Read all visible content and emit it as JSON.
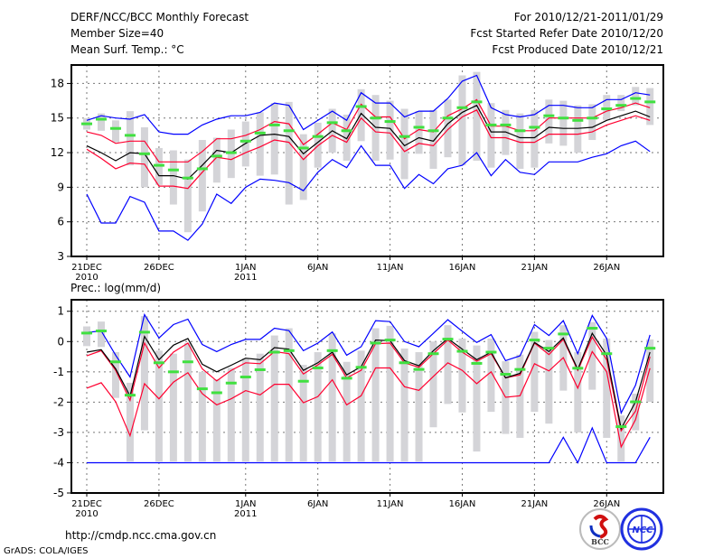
{
  "header": {
    "title": "DERF/NCC/BCC Monthly Forecast",
    "member_size": "Member Size=40",
    "variable": "Mean Surf. Temp.: °C",
    "period": "For 2010/12/21-2011/01/29",
    "started": "Fcst Started Refer Date 2010/12/20",
    "produced": "Fcst Produced Date 2010/12/21"
  },
  "footer": {
    "url": "http://cmdp.ncc.cma.gov.cn",
    "credit": "GrADS: COLA/IGES",
    "logo_bcc": "BCC",
    "logo_ncc": "NCC"
  },
  "colors": {
    "mean": "#000000",
    "spread": "#ff0030",
    "extreme": "#0000ff",
    "obs": "#40e040",
    "range": "#d4d4d8",
    "grid": "#777777"
  },
  "chart_data": [
    {
      "type": "line",
      "title": "Mean Surf. Temp.: °C",
      "xlabel": "",
      "ylabel": "°C",
      "ylim": [
        3,
        19.6
      ],
      "yticks": [
        3,
        6,
        9,
        12,
        15,
        18
      ],
      "xticks": [
        {
          "day": 0,
          "label": "21DEC",
          "sub": "2010"
        },
        {
          "day": 5,
          "label": "26DEC",
          "sub": ""
        },
        {
          "day": 11,
          "label": "1JAN",
          "sub": "2011"
        },
        {
          "day": 16,
          "label": "6JAN",
          "sub": ""
        },
        {
          "day": 21,
          "label": "11JAN",
          "sub": ""
        },
        {
          "day": 26,
          "label": "16JAN",
          "sub": ""
        },
        {
          "day": 31,
          "label": "21JAN",
          "sub": ""
        },
        {
          "day": 36,
          "label": "26JAN",
          "sub": ""
        }
      ],
      "grid": true,
      "range_hi": [
        15.0,
        15.4,
        14.8,
        15.6,
        14.2,
        12.4,
        12.2,
        11.4,
        13.1,
        13.3,
        14.0,
        14.7,
        15.5,
        16.3,
        16.4,
        13.6,
        14.6,
        15.8,
        15.3,
        17.5,
        17.0,
        16.5,
        15.8,
        15.6,
        15.7,
        16.6,
        18.7,
        19.0,
        16.3,
        15.7,
        15.4,
        15.7,
        16.6,
        16.5,
        16.1,
        16.2,
        17.0,
        17.0,
        17.7,
        17.6
      ],
      "range_lo": [
        14.0,
        13.9,
        12.9,
        10.9,
        9.0,
        9.2,
        7.5,
        5.1,
        6.9,
        9.4,
        9.8,
        10.8,
        10.0,
        10.1,
        7.5,
        7.9,
        10.7,
        12.0,
        11.3,
        13.0,
        11.3,
        11.4,
        9.7,
        11.9,
        10.6,
        11.6,
        10.9,
        11.3,
        10.7,
        11.8,
        10.6,
        10.7,
        12.8,
        12.6,
        12.0,
        13.1,
        14.8,
        15.6,
        16.1,
        14.4
      ],
      "series": [
        {
          "name": "max",
          "color": "#0000ff",
          "values": [
            14.8,
            15.2,
            15.0,
            14.9,
            15.3,
            13.8,
            13.6,
            13.6,
            14.4,
            14.9,
            15.2,
            15.2,
            15.5,
            16.3,
            16.1,
            14.0,
            14.8,
            15.6,
            14.8,
            17.2,
            16.3,
            16.3,
            15.1,
            15.6,
            15.6,
            16.7,
            18.2,
            18.7,
            15.9,
            15.3,
            15.1,
            15.3,
            16.1,
            16.1,
            15.9,
            15.9,
            16.6,
            16.6,
            17.2,
            17.0
          ]
        },
        {
          "name": "upper",
          "color": "#ff0030",
          "values": [
            13.8,
            13.5,
            12.8,
            13.0,
            13.0,
            11.2,
            11.2,
            11.2,
            12.1,
            13.2,
            13.2,
            13.5,
            14.0,
            14.7,
            14.5,
            12.7,
            13.6,
            14.6,
            14.0,
            16.2,
            15.1,
            15.1,
            13.2,
            14.0,
            13.8,
            15.2,
            15.8,
            16.6,
            14.3,
            14.3,
            13.9,
            13.9,
            15.0,
            15.0,
            15.0,
            15.0,
            15.6,
            15.9,
            16.3,
            15.9
          ]
        },
        {
          "name": "mean",
          "color": "#000000",
          "values": [
            12.6,
            12.0,
            11.3,
            12.0,
            11.9,
            10.0,
            10.0,
            9.7,
            10.9,
            12.2,
            12.0,
            12.8,
            13.5,
            13.6,
            13.4,
            11.9,
            12.9,
            13.9,
            13.2,
            15.4,
            14.2,
            14.1,
            12.6,
            13.3,
            13.0,
            14.5,
            15.5,
            16.1,
            13.8,
            13.8,
            13.3,
            13.3,
            14.2,
            14.1,
            14.1,
            14.2,
            14.8,
            15.2,
            15.6,
            15.1
          ]
        },
        {
          "name": "lower",
          "color": "#ff0030",
          "values": [
            12.3,
            11.5,
            10.6,
            11.1,
            11.0,
            9.1,
            9.1,
            8.9,
            10.3,
            11.6,
            11.4,
            12.0,
            12.5,
            13.1,
            12.9,
            11.4,
            12.6,
            13.5,
            12.9,
            15.0,
            13.8,
            13.7,
            12.1,
            12.8,
            12.6,
            14.0,
            15.1,
            15.7,
            13.3,
            13.3,
            12.9,
            12.9,
            13.6,
            13.6,
            13.6,
            13.8,
            14.4,
            14.8,
            15.2,
            14.8
          ]
        },
        {
          "name": "min",
          "color": "#0000ff",
          "values": [
            8.4,
            5.9,
            5.9,
            8.2,
            7.7,
            5.2,
            5.2,
            4.4,
            5.8,
            8.4,
            7.6,
            9.0,
            9.7,
            9.6,
            9.4,
            8.7,
            10.3,
            11.4,
            10.7,
            12.6,
            10.9,
            10.9,
            8.9,
            10.1,
            9.3,
            10.6,
            10.9,
            12.0,
            10.0,
            11.4,
            10.3,
            10.1,
            11.2,
            11.2,
            11.2,
            11.6,
            11.9,
            12.6,
            13.0,
            12.1
          ]
        },
        {
          "name": "obs",
          "color": "#40e040",
          "values": [
            14.5,
            14.9,
            14.1,
            13.5,
            11.9,
            10.9,
            10.5,
            9.8,
            10.6,
            11.7,
            12.0,
            13.0,
            13.7,
            14.4,
            13.9,
            12.4,
            13.4,
            14.6,
            13.9,
            16.0,
            15.0,
            14.7,
            13.4,
            14.2,
            13.9,
            15.0,
            15.9,
            16.4,
            14.4,
            14.4,
            13.9,
            14.2,
            15.2,
            15.0,
            14.8,
            15.0,
            15.8,
            16.1,
            16.7,
            16.4
          ]
        }
      ]
    },
    {
      "type": "line",
      "title": "Prec.: log(mm/d)",
      "xlabel": "",
      "ylabel": "log(mm/d)",
      "ylim": [
        -5,
        1.38
      ],
      "yticks": [
        -5,
        -4,
        -3,
        -2,
        -1,
        0,
        1
      ],
      "xticks": [
        {
          "day": 0,
          "label": "21DEC",
          "sub": "2010"
        },
        {
          "day": 5,
          "label": "26DEC",
          "sub": ""
        },
        {
          "day": 11,
          "label": "1JAN",
          "sub": "2011"
        },
        {
          "day": 16,
          "label": "6JAN",
          "sub": ""
        },
        {
          "day": 21,
          "label": "11JAN",
          "sub": ""
        },
        {
          "day": 26,
          "label": "16JAN",
          "sub": ""
        },
        {
          "day": 31,
          "label": "21JAN",
          "sub": ""
        },
        {
          "day": 36,
          "label": "26JAN",
          "sub": ""
        }
      ],
      "grid": true,
      "range_hi": [
        0.5,
        0.66,
        -0.35,
        -1.36,
        0.84,
        -0.3,
        -0.4,
        -0.05,
        -1.0,
        -1.24,
        -0.87,
        -0.55,
        -0.4,
        0.2,
        0.44,
        -0.77,
        -0.35,
        0.27,
        -0.67,
        -0.3,
        0.44,
        0.52,
        -0.23,
        -0.35,
        0.0,
        0.54,
        0.1,
        -0.13,
        0.1,
        -0.65,
        -0.43,
        0.32,
        0.05,
        0.54,
        -0.35,
        0.64,
        0.1,
        -2.44,
        -1.72,
        0.07
      ],
      "range_lo": [
        -0.15,
        -0.18,
        -1.86,
        -3.96,
        -2.93,
        -3.96,
        -3.96,
        -3.96,
        -3.96,
        -3.96,
        -3.96,
        -3.96,
        -3.96,
        -3.96,
        -3.96,
        -3.96,
        -3.96,
        -3.96,
        -3.96,
        -3.96,
        -3.96,
        -3.96,
        -3.96,
        -3.96,
        -2.83,
        -2.06,
        -2.34,
        -3.63,
        -2.32,
        -3.05,
        -3.18,
        -2.32,
        -2.71,
        -1.62,
        -3.0,
        -1.59,
        -3.18,
        -3.96,
        -2.93,
        -1.99
      ],
      "series": [
        {
          "name": "max",
          "color": "#0000ff",
          "values": [
            0.3,
            0.35,
            -0.45,
            -1.17,
            0.89,
            0.12,
            0.56,
            0.74,
            -0.1,
            -0.33,
            -0.1,
            0.07,
            0.07,
            0.44,
            0.36,
            -0.3,
            -0.05,
            0.32,
            -0.45,
            -0.17,
            0.69,
            0.66,
            0.0,
            -0.17,
            0.27,
            0.72,
            0.34,
            -0.03,
            0.23,
            -0.63,
            -0.47,
            0.56,
            0.2,
            0.69,
            -0.4,
            0.86,
            0.1,
            -2.36,
            -1.44,
            0.22
          ]
        },
        {
          "name": "upper",
          "color": "#ff0030",
          "values": [
            -0.47,
            -0.3,
            -0.95,
            -1.94,
            -0.05,
            -0.87,
            -0.35,
            -0.05,
            -0.9,
            -1.3,
            -0.95,
            -0.7,
            -0.73,
            -0.33,
            -0.4,
            -1.07,
            -0.77,
            -0.42,
            -1.2,
            -0.95,
            -0.07,
            -0.05,
            -0.7,
            -0.85,
            -0.4,
            0.05,
            -0.35,
            -0.65,
            -0.4,
            -1.2,
            -1.1,
            -0.05,
            -0.43,
            0.07,
            -0.95,
            0.15,
            -0.6,
            -2.95,
            -2.3,
            -0.5
          ]
        },
        {
          "name": "mean",
          "color": "#000000",
          "values": [
            -0.35,
            -0.27,
            -0.9,
            -1.8,
            0.17,
            -0.6,
            -0.12,
            0.1,
            -0.75,
            -1.0,
            -0.78,
            -0.55,
            -0.6,
            -0.2,
            -0.25,
            -0.95,
            -0.7,
            -0.35,
            -1.1,
            -0.83,
            0.05,
            0.03,
            -0.63,
            -0.8,
            -0.3,
            0.1,
            -0.25,
            -0.6,
            -0.35,
            -1.2,
            -1.05,
            -0.03,
            -0.33,
            0.12,
            -0.92,
            0.27,
            -0.45,
            -2.88,
            -1.99,
            -0.35
          ]
        },
        {
          "name": "lower",
          "color": "#ff0030",
          "values": [
            -1.54,
            -1.36,
            -1.99,
            -3.11,
            -1.39,
            -1.89,
            -1.34,
            -1.03,
            -1.72,
            -2.09,
            -1.89,
            -1.62,
            -1.76,
            -1.41,
            -1.41,
            -2.02,
            -1.82,
            -1.26,
            -2.09,
            -1.79,
            -0.87,
            -0.87,
            -1.49,
            -1.61,
            -1.15,
            -0.7,
            -0.95,
            -1.39,
            -1.0,
            -1.84,
            -1.79,
            -0.73,
            -0.97,
            -0.53,
            -1.54,
            -0.33,
            -1.0,
            -3.48,
            -2.58,
            -0.88
          ]
        },
        {
          "name": "min",
          "color": "#0000ff",
          "values": [
            -4,
            -4,
            -4,
            -4,
            -4,
            -4,
            -4,
            -4,
            -4,
            -4,
            -4,
            -4,
            -4,
            -4,
            -4,
            -4,
            -4,
            -4,
            -4,
            -4,
            -4,
            -4,
            -4,
            -4,
            -4,
            -4,
            -4,
            -4,
            -4,
            -4,
            -4,
            -4,
            -4,
            -3.16,
            -4,
            -2.85,
            -4,
            -4,
            -4,
            -3.16
          ]
        },
        {
          "name": "obs",
          "color": "#40e040",
          "values": [
            0.28,
            0.35,
            -0.67,
            -1.77,
            0.31,
            -0.7,
            -1.0,
            -0.67,
            -1.56,
            -1.69,
            -1.37,
            -1.17,
            -0.93,
            -0.35,
            -0.3,
            -1.31,
            -0.87,
            -0.3,
            -1.21,
            -0.85,
            -0.05,
            0.05,
            -0.7,
            -0.92,
            -0.4,
            0.08,
            -0.32,
            -0.72,
            -0.35,
            -1.08,
            -0.92,
            0.05,
            -0.22,
            0.25,
            -0.88,
            0.44,
            -0.4,
            -2.81,
            -1.99,
            -0.22
          ]
        }
      ]
    }
  ]
}
